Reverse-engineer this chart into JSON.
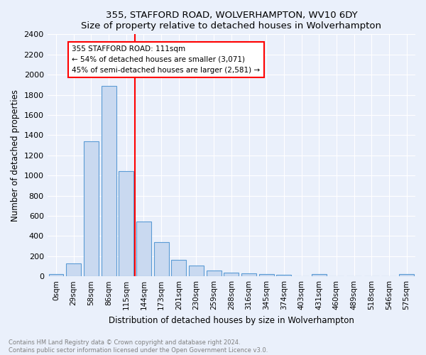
{
  "title1": "355, STAFFORD ROAD, WOLVERHAMPTON, WV10 6DY",
  "title2": "Size of property relative to detached houses in Wolverhampton",
  "xlabel": "Distribution of detached houses by size in Wolverhampton",
  "ylabel": "Number of detached properties",
  "bin_labels": [
    "0sqm",
    "29sqm",
    "58sqm",
    "86sqm",
    "115sqm",
    "144sqm",
    "173sqm",
    "201sqm",
    "230sqm",
    "259sqm",
    "288sqm",
    "316sqm",
    "345sqm",
    "374sqm",
    "403sqm",
    "431sqm",
    "460sqm",
    "489sqm",
    "518sqm",
    "546sqm",
    "575sqm"
  ],
  "bar_heights": [
    20,
    130,
    1340,
    1890,
    1040,
    540,
    340,
    165,
    105,
    55,
    35,
    30,
    20,
    15,
    0,
    20,
    0,
    0,
    0,
    0,
    20
  ],
  "bar_color": "#c9d9f0",
  "bar_edge_color": "#5b9bd5",
  "vline_x": 4.5,
  "vline_color": "red",
  "annotation_title": "355 STAFFORD ROAD: 111sqm",
  "annotation_line1": "← 54% of detached houses are smaller (3,071)",
  "annotation_line2": "45% of semi-detached houses are larger (2,581) →",
  "annotation_box_color": "white",
  "annotation_box_edge": "red",
  "ylim": [
    0,
    2400
  ],
  "yticks": [
    0,
    200,
    400,
    600,
    800,
    1000,
    1200,
    1400,
    1600,
    1800,
    2000,
    2200,
    2400
  ],
  "footnote1": "Contains HM Land Registry data © Crown copyright and database right 2024.",
  "footnote2": "Contains public sector information licensed under the Open Government Licence v3.0.",
  "bg_color": "#eaf0fb"
}
